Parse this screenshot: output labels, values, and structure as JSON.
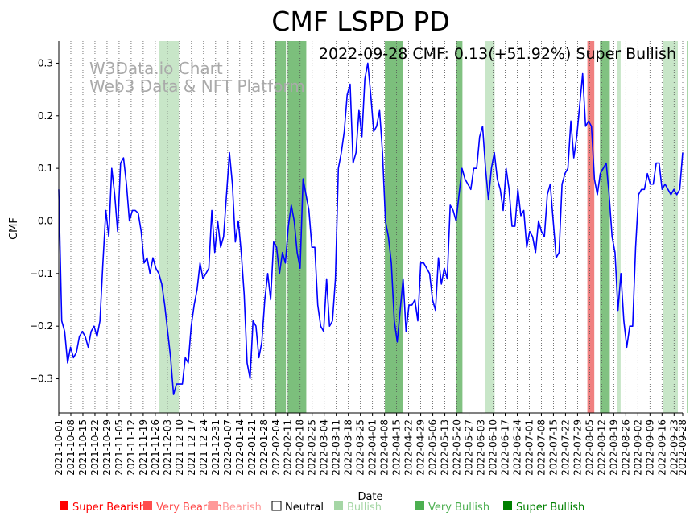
{
  "chart_data": {
    "type": "line",
    "title": "CMF LSPD PD",
    "annotation": "2022-09-28 CMF: 0.13(+51.92%) Super Bullish",
    "watermark": [
      "W3Data.io Chart",
      "Web3 Data & NFT Platform"
    ],
    "xlabel": "Date",
    "ylabel": "CMF",
    "ylim": [
      -0.365,
      0.342
    ],
    "yticks": [
      -0.3,
      -0.2,
      -0.1,
      0.0,
      0.1,
      0.2,
      0.3
    ],
    "ytick_labels": [
      "−0.3",
      "−0.2",
      "−0.1",
      "0.0",
      "0.1",
      "0.2",
      "0.3"
    ],
    "xstart": "2021-10-01",
    "xend": "2022-09-28",
    "xtick_labels": [
      "2021-10-01",
      "2021-10-08",
      "2021-10-15",
      "2021-10-22",
      "2021-10-29",
      "2021-11-05",
      "2021-11-12",
      "2021-11-19",
      "2021-11-26",
      "2021-12-03",
      "2021-12-10",
      "2021-12-17",
      "2021-12-24",
      "2021-12-31",
      "2022-01-07",
      "2022-01-14",
      "2022-01-21",
      "2022-01-28",
      "2022-02-04",
      "2022-02-11",
      "2022-02-18",
      "2022-02-25",
      "2022-03-04",
      "2022-03-11",
      "2022-03-18",
      "2022-03-25",
      "2022-04-01",
      "2022-04-08",
      "2022-04-15",
      "2022-04-22",
      "2022-04-29",
      "2022-05-06",
      "2022-05-13",
      "2022-05-20",
      "2022-05-27",
      "2022-06-03",
      "2022-06-10",
      "2022-06-17",
      "2022-06-24",
      "2022-07-01",
      "2022-07-08",
      "2022-07-15",
      "2022-07-22",
      "2022-07-29",
      "2022-08-05",
      "2022-08-12",
      "2022-08-19",
      "2022-08-26",
      "2022-09-02",
      "2022-09-09",
      "2022-09-16",
      "2022-09-23",
      "2022-09-28"
    ],
    "series": [
      {
        "name": "CMF",
        "color": "#0000ff",
        "points": [
          [
            0,
            0.06
          ],
          [
            1,
            -0.19
          ],
          [
            2,
            -0.21
          ],
          [
            3,
            -0.27
          ],
          [
            4,
            -0.24
          ],
          [
            5,
            -0.26
          ],
          [
            6,
            -0.25
          ],
          [
            7,
            -0.22
          ],
          [
            8,
            -0.21
          ],
          [
            9,
            -0.22
          ],
          [
            10,
            -0.24
          ],
          [
            11,
            -0.21
          ],
          [
            12,
            -0.2
          ],
          [
            13,
            -0.22
          ],
          [
            14,
            -0.19
          ],
          [
            15,
            -0.08
          ],
          [
            16,
            0.02
          ],
          [
            17,
            -0.03
          ],
          [
            18,
            0.1
          ],
          [
            19,
            0.05
          ],
          [
            20,
            -0.02
          ],
          [
            21,
            0.11
          ],
          [
            22,
            0.12
          ],
          [
            23,
            0.07
          ],
          [
            24,
            0.0
          ],
          [
            25,
            0.02
          ],
          [
            26,
            0.02
          ],
          [
            27,
            0.015
          ],
          [
            28,
            -0.02
          ],
          [
            29,
            -0.08
          ],
          [
            30,
            -0.07
          ],
          [
            31,
            -0.1
          ],
          [
            32,
            -0.07
          ],
          [
            33,
            -0.09
          ],
          [
            34,
            -0.1
          ],
          [
            35,
            -0.12
          ],
          [
            36,
            -0.16
          ],
          [
            37,
            -0.21
          ],
          [
            38,
            -0.26
          ],
          [
            39,
            -0.33
          ],
          [
            40,
            -0.31
          ],
          [
            41,
            -0.31
          ],
          [
            42,
            -0.31
          ],
          [
            43,
            -0.26
          ],
          [
            44,
            -0.27
          ],
          [
            45,
            -0.2
          ],
          [
            46,
            -0.16
          ],
          [
            47,
            -0.13
          ],
          [
            48,
            -0.08
          ],
          [
            49,
            -0.11
          ],
          [
            50,
            -0.1
          ],
          [
            51,
            -0.09
          ],
          [
            52,
            0.02
          ],
          [
            53,
            -0.06
          ],
          [
            54,
            0.0
          ],
          [
            55,
            -0.05
          ],
          [
            56,
            -0.03
          ],
          [
            57,
            0.05
          ],
          [
            58,
            0.13
          ],
          [
            59,
            0.07
          ],
          [
            60,
            -0.04
          ],
          [
            61,
            0.0
          ],
          [
            62,
            -0.06
          ],
          [
            63,
            -0.14
          ],
          [
            64,
            -0.27
          ],
          [
            65,
            -0.3
          ],
          [
            66,
            -0.19
          ],
          [
            67,
            -0.2
          ],
          [
            68,
            -0.26
          ],
          [
            69,
            -0.23
          ],
          [
            70,
            -0.15
          ],
          [
            71,
            -0.1
          ],
          [
            72,
            -0.15
          ],
          [
            73,
            -0.04
          ],
          [
            74,
            -0.05
          ],
          [
            75,
            -0.1
          ],
          [
            76,
            -0.06
          ],
          [
            77,
            -0.08
          ],
          [
            78,
            -0.01
          ],
          [
            79,
            0.03
          ],
          [
            80,
            0.0
          ],
          [
            81,
            -0.06
          ],
          [
            82,
            -0.09
          ],
          [
            83,
            0.08
          ],
          [
            84,
            0.05
          ],
          [
            85,
            0.02
          ],
          [
            86,
            -0.05
          ],
          [
            87,
            -0.05
          ],
          [
            88,
            -0.16
          ],
          [
            89,
            -0.2
          ],
          [
            90,
            -0.21
          ],
          [
            91,
            -0.11
          ],
          [
            92,
            -0.2
          ],
          [
            93,
            -0.19
          ],
          [
            94,
            -0.11
          ],
          [
            95,
            0.1
          ],
          [
            96,
            0.13
          ],
          [
            97,
            0.17
          ],
          [
            98,
            0.24
          ],
          [
            99,
            0.26
          ],
          [
            100,
            0.11
          ],
          [
            101,
            0.13
          ],
          [
            102,
            0.21
          ],
          [
            103,
            0.16
          ],
          [
            104,
            0.27
          ],
          [
            105,
            0.3
          ],
          [
            106,
            0.24
          ],
          [
            107,
            0.17
          ],
          [
            108,
            0.18
          ],
          [
            109,
            0.21
          ],
          [
            110,
            0.13
          ],
          [
            111,
            0.0
          ],
          [
            112,
            -0.03
          ],
          [
            113,
            -0.08
          ],
          [
            114,
            -0.19
          ],
          [
            115,
            -0.23
          ],
          [
            116,
            -0.17
          ],
          [
            117,
            -0.11
          ],
          [
            118,
            -0.21
          ],
          [
            119,
            -0.16
          ],
          [
            120,
            -0.16
          ],
          [
            121,
            -0.15
          ],
          [
            122,
            -0.19
          ],
          [
            123,
            -0.08
          ],
          [
            124,
            -0.08
          ],
          [
            125,
            -0.09
          ],
          [
            126,
            -0.1
          ],
          [
            127,
            -0.15
          ],
          [
            128,
            -0.17
          ],
          [
            129,
            -0.07
          ],
          [
            130,
            -0.12
          ],
          [
            131,
            -0.09
          ],
          [
            132,
            -0.11
          ],
          [
            133,
            0.03
          ],
          [
            134,
            0.02
          ],
          [
            135,
            0.0
          ],
          [
            136,
            0.05
          ],
          [
            137,
            0.1
          ],
          [
            138,
            0.08
          ],
          [
            139,
            0.07
          ],
          [
            140,
            0.06
          ],
          [
            141,
            0.1
          ],
          [
            142,
            0.1
          ],
          [
            143,
            0.16
          ],
          [
            144,
            0.18
          ],
          [
            145,
            0.1
          ],
          [
            146,
            0.04
          ],
          [
            147,
            0.1
          ],
          [
            148,
            0.13
          ],
          [
            149,
            0.08
          ],
          [
            150,
            0.06
          ],
          [
            151,
            0.02
          ],
          [
            152,
            0.1
          ],
          [
            153,
            0.06
          ],
          [
            154,
            -0.01
          ],
          [
            155,
            -0.01
          ],
          [
            156,
            0.06
          ],
          [
            157,
            0.01
          ],
          [
            158,
            0.02
          ],
          [
            159,
            -0.05
          ],
          [
            160,
            -0.02
          ],
          [
            161,
            -0.03
          ],
          [
            162,
            -0.06
          ],
          [
            163,
            0.0
          ],
          [
            164,
            -0.02
          ],
          [
            165,
            -0.03
          ],
          [
            166,
            0.05
          ],
          [
            167,
            0.07
          ],
          [
            168,
            0.0
          ],
          [
            169,
            -0.07
          ],
          [
            170,
            -0.06
          ],
          [
            171,
            0.07
          ],
          [
            172,
            0.09
          ],
          [
            173,
            0.1
          ],
          [
            174,
            0.19
          ],
          [
            175,
            0.12
          ],
          [
            176,
            0.16
          ],
          [
            177,
            0.22
          ],
          [
            178,
            0.28
          ],
          [
            179,
            0.18
          ],
          [
            180,
            0.19
          ],
          [
            181,
            0.18
          ],
          [
            182,
            0.08
          ],
          [
            183,
            0.05
          ],
          [
            184,
            0.09
          ],
          [
            185,
            0.1
          ],
          [
            186,
            0.11
          ],
          [
            187,
            0.05
          ],
          [
            188,
            -0.03
          ],
          [
            189,
            -0.06
          ],
          [
            190,
            -0.17
          ],
          [
            191,
            -0.1
          ],
          [
            192,
            -0.19
          ],
          [
            193,
            -0.24
          ],
          [
            194,
            -0.2
          ],
          [
            195,
            -0.2
          ],
          [
            196,
            -0.05
          ],
          [
            197,
            0.05
          ],
          [
            198,
            0.06
          ],
          [
            199,
            0.06
          ],
          [
            200,
            0.09
          ],
          [
            201,
            0.07
          ],
          [
            202,
            0.07
          ],
          [
            203,
            0.11
          ],
          [
            204,
            0.11
          ],
          [
            205,
            0.06
          ],
          [
            206,
            0.07
          ],
          [
            207,
            0.06
          ],
          [
            208,
            0.05
          ],
          [
            209,
            0.06
          ],
          [
            210,
            0.05
          ],
          [
            211,
            0.06
          ],
          [
            212,
            0.13
          ]
        ]
      }
    ],
    "bands": [
      {
        "start": 58.2,
        "end": 69.7,
        "level": "Bullish"
      },
      {
        "start": 125.4,
        "end": 131.8,
        "level": "Very Bullish"
      },
      {
        "start": 132.8,
        "end": 143.6,
        "level": "Super Bullish"
      },
      {
        "start": 189.2,
        "end": 199.7,
        "level": "Super Bullish"
      },
      {
        "start": 230.6,
        "end": 234.2,
        "level": "Very Bullish"
      },
      {
        "start": 247.4,
        "end": 252.9,
        "level": "Bullish"
      },
      {
        "start": 306.7,
        "end": 310.7,
        "level": "Bearish"
      },
      {
        "start": 314.0,
        "end": 319.7,
        "level": "Very Bullish"
      },
      {
        "start": 323.7,
        "end": 326.0,
        "level": "Bullish"
      },
      {
        "start": 350.4,
        "end": 359.2,
        "level": "Bullish"
      },
      {
        "start": 364.5,
        "end": 364.9,
        "level": "Super Bullish"
      }
    ],
    "legend": [
      {
        "label": "Super Bearish",
        "color": "#ff0000"
      },
      {
        "label": "Very Bearish",
        "color": "#ff4d4d"
      },
      {
        "label": "Bearish",
        "color": "#ff9999"
      },
      {
        "label": "Neutral",
        "color": "#000000"
      },
      {
        "label": "Bullish",
        "color": "#a5d6a5"
      },
      {
        "label": "Very Bullish",
        "color": "#4caf50"
      },
      {
        "label": "Super Bullish",
        "color": "#008000"
      }
    ],
    "colors": {
      "line": "#0000ff",
      "Bullish": "#c8e6c8",
      "Very Bullish": "#81c281",
      "Super Bullish": "#7cbf7c",
      "Bearish": "#f08080",
      "watermark": "#aaaaaa"
    }
  }
}
